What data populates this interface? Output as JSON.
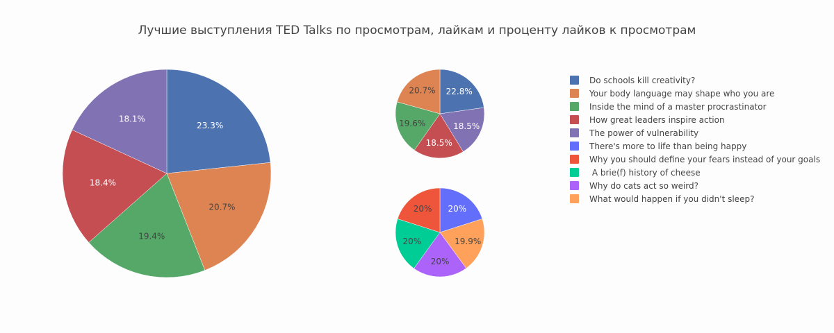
{
  "chart_data": {
    "type": "pie",
    "title": "Лучшие выступления TED Talks по просмотрам, лайкам и проценту лайков к просмотрам",
    "legend_placement": "right",
    "pies": [
      {
        "labels": [
          "Do schools kill creativity?",
          "Your body language may shape who you are",
          "Inside the mind of a master procrastinator",
          "How great leaders inspire action",
          "The power of vulnerability"
        ],
        "percent_labels": [
          "23.3%",
          "20.7%",
          "19.4%",
          "18.4%",
          "18.1%"
        ],
        "values": [
          23.3,
          20.7,
          19.4,
          18.4,
          18.1
        ],
        "colors": [
          "#4c72b0",
          "#dd8452",
          "#55a868",
          "#c44e52",
          "#8172b3"
        ],
        "text_colors": [
          "#ffffff",
          "#444444",
          "#444444",
          "#ffffff",
          "#ffffff"
        ]
      },
      {
        "labels": [
          "Do schools kill creativity?",
          "The power of vulnerability",
          "How great leaders inspire action",
          "Inside the mind of a master procrastinator",
          "Your body language may shape who you are"
        ],
        "percent_labels": [
          "22.8%",
          "18.5%",
          "18.5%",
          "19.6%",
          "20.7%"
        ],
        "values": [
          22.8,
          18.5,
          18.5,
          19.6,
          20.7
        ],
        "colors": [
          "#4c72b0",
          "#8172b3",
          "#c44e52",
          "#55a868",
          "#dd8452"
        ],
        "text_colors": [
          "#ffffff",
          "#ffffff",
          "#ffffff",
          "#444444",
          "#444444"
        ]
      },
      {
        "labels": [
          "There's more to life than being happy",
          "What would happen if you didn't sleep?",
          "Why do cats act so weird?",
          " A brie(f) history of cheese",
          "Why you should define your fears instead of your goals"
        ],
        "percent_labels": [
          "20%",
          "19.9%",
          "20%",
          "20%",
          "20%"
        ],
        "values": [
          20.05,
          19.9,
          20.0,
          20.0,
          20.05
        ],
        "colors": [
          "#636efa",
          "#ffa15a",
          "#ab63fa",
          "#00cc96",
          "#ef553b"
        ],
        "text_colors": [
          "#ffffff",
          "#444444",
          "#444444",
          "#444444",
          "#444444"
        ]
      }
    ],
    "legend": [
      {
        "name": "Do schools kill creativity?",
        "color": "#4c72b0"
      },
      {
        "name": "Your body language may shape who you are",
        "color": "#dd8452"
      },
      {
        "name": "Inside the mind of a master procrastinator",
        "color": "#55a868"
      },
      {
        "name": "How great leaders inspire action",
        "color": "#c44e52"
      },
      {
        "name": "The power of vulnerability",
        "color": "#8172b3"
      },
      {
        "name": "There's more to life than being happy",
        "color": "#636efa"
      },
      {
        "name": "Why you should define your fears instead of your goals",
        "color": "#ef553b"
      },
      {
        "name": " A brie(f) history of cheese",
        "color": "#00cc96"
      },
      {
        "name": "Why do cats act so weird?",
        "color": "#ab63fa"
      },
      {
        "name": "What would happen if you didn't sleep?",
        "color": "#ffa15a"
      }
    ]
  }
}
